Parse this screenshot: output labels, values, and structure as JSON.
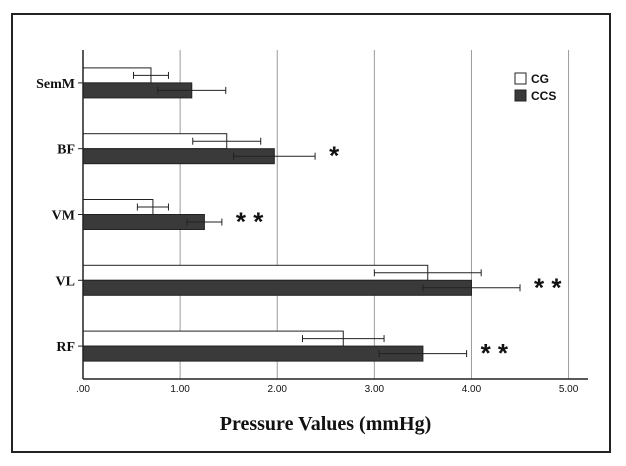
{
  "chart_data": {
    "type": "bar",
    "orientation": "horizontal",
    "categories": [
      "SemM",
      "BF",
      "VM",
      "VL",
      "RF"
    ],
    "series": [
      {
        "name": "CG",
        "color": "#ffffff",
        "values": [
          0.7,
          1.48,
          0.72,
          3.55,
          2.68
        ],
        "error": [
          0.18,
          0.35,
          0.16,
          0.55,
          0.42
        ]
      },
      {
        "name": "CCS",
        "color": "#3a3a3a",
        "values": [
          1.12,
          1.97,
          1.25,
          4.0,
          3.5
        ],
        "error": [
          0.35,
          0.42,
          0.18,
          0.5,
          0.45
        ]
      }
    ],
    "significance": [
      "",
      "*",
      "* *",
      "* *",
      "* *"
    ],
    "xlim": [
      0,
      5.0
    ],
    "xticks": [
      ".00",
      "1.00",
      "2.00",
      "3.00",
      "4.00",
      "5.00"
    ],
    "xlabel": "Pressure Values (mmHg)",
    "ylabel": "",
    "title": "",
    "grid": "vertical",
    "legend": "top-right"
  }
}
